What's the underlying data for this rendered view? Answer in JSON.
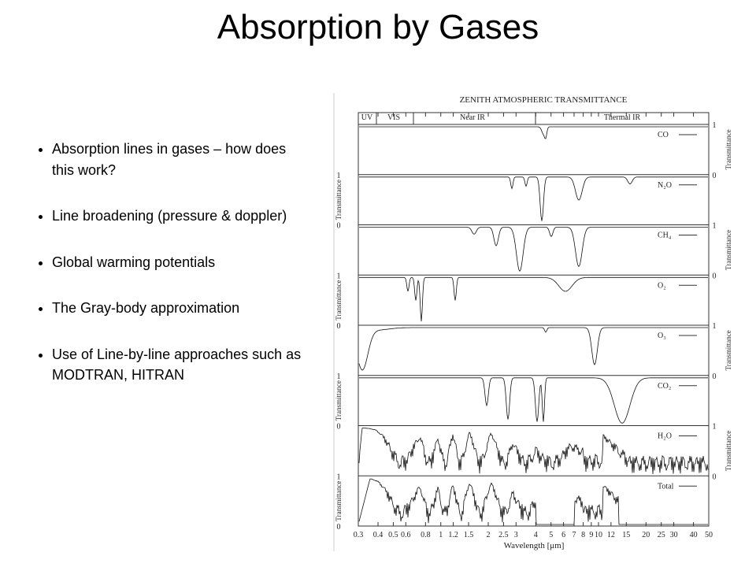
{
  "title": "Absorption by Gases",
  "bullets": [
    "Absorption lines in gases – how does this work?",
    "Line broadening (pressure & doppler)",
    "Global warming potentials",
    "The Gray-body approximation",
    "Use of Line-by-line approaches such as MODTRAN, HITRAN"
  ],
  "figure": {
    "title": "ZENITH ATMOSPHERIC TRANSMITTANCE",
    "bands": [
      "UV",
      "VIS",
      "Near IR",
      "Thermal IR"
    ],
    "gases": [
      "CO",
      "N₂O",
      "CH₄",
      "O₂",
      "O₃",
      "CO₂",
      "H₂O",
      "Total"
    ],
    "y_label": "Transmittance",
    "y_high": 1,
    "y_low": 0,
    "x_label": "Wavelength [μm]",
    "xticks": [
      0.3,
      0.4,
      0.5,
      0.6,
      0.8,
      1,
      1.2,
      1.5,
      2,
      2.5,
      3,
      4,
      5,
      6,
      7,
      8,
      9,
      10,
      12,
      15,
      20,
      25,
      30,
      40,
      50
    ]
  }
}
